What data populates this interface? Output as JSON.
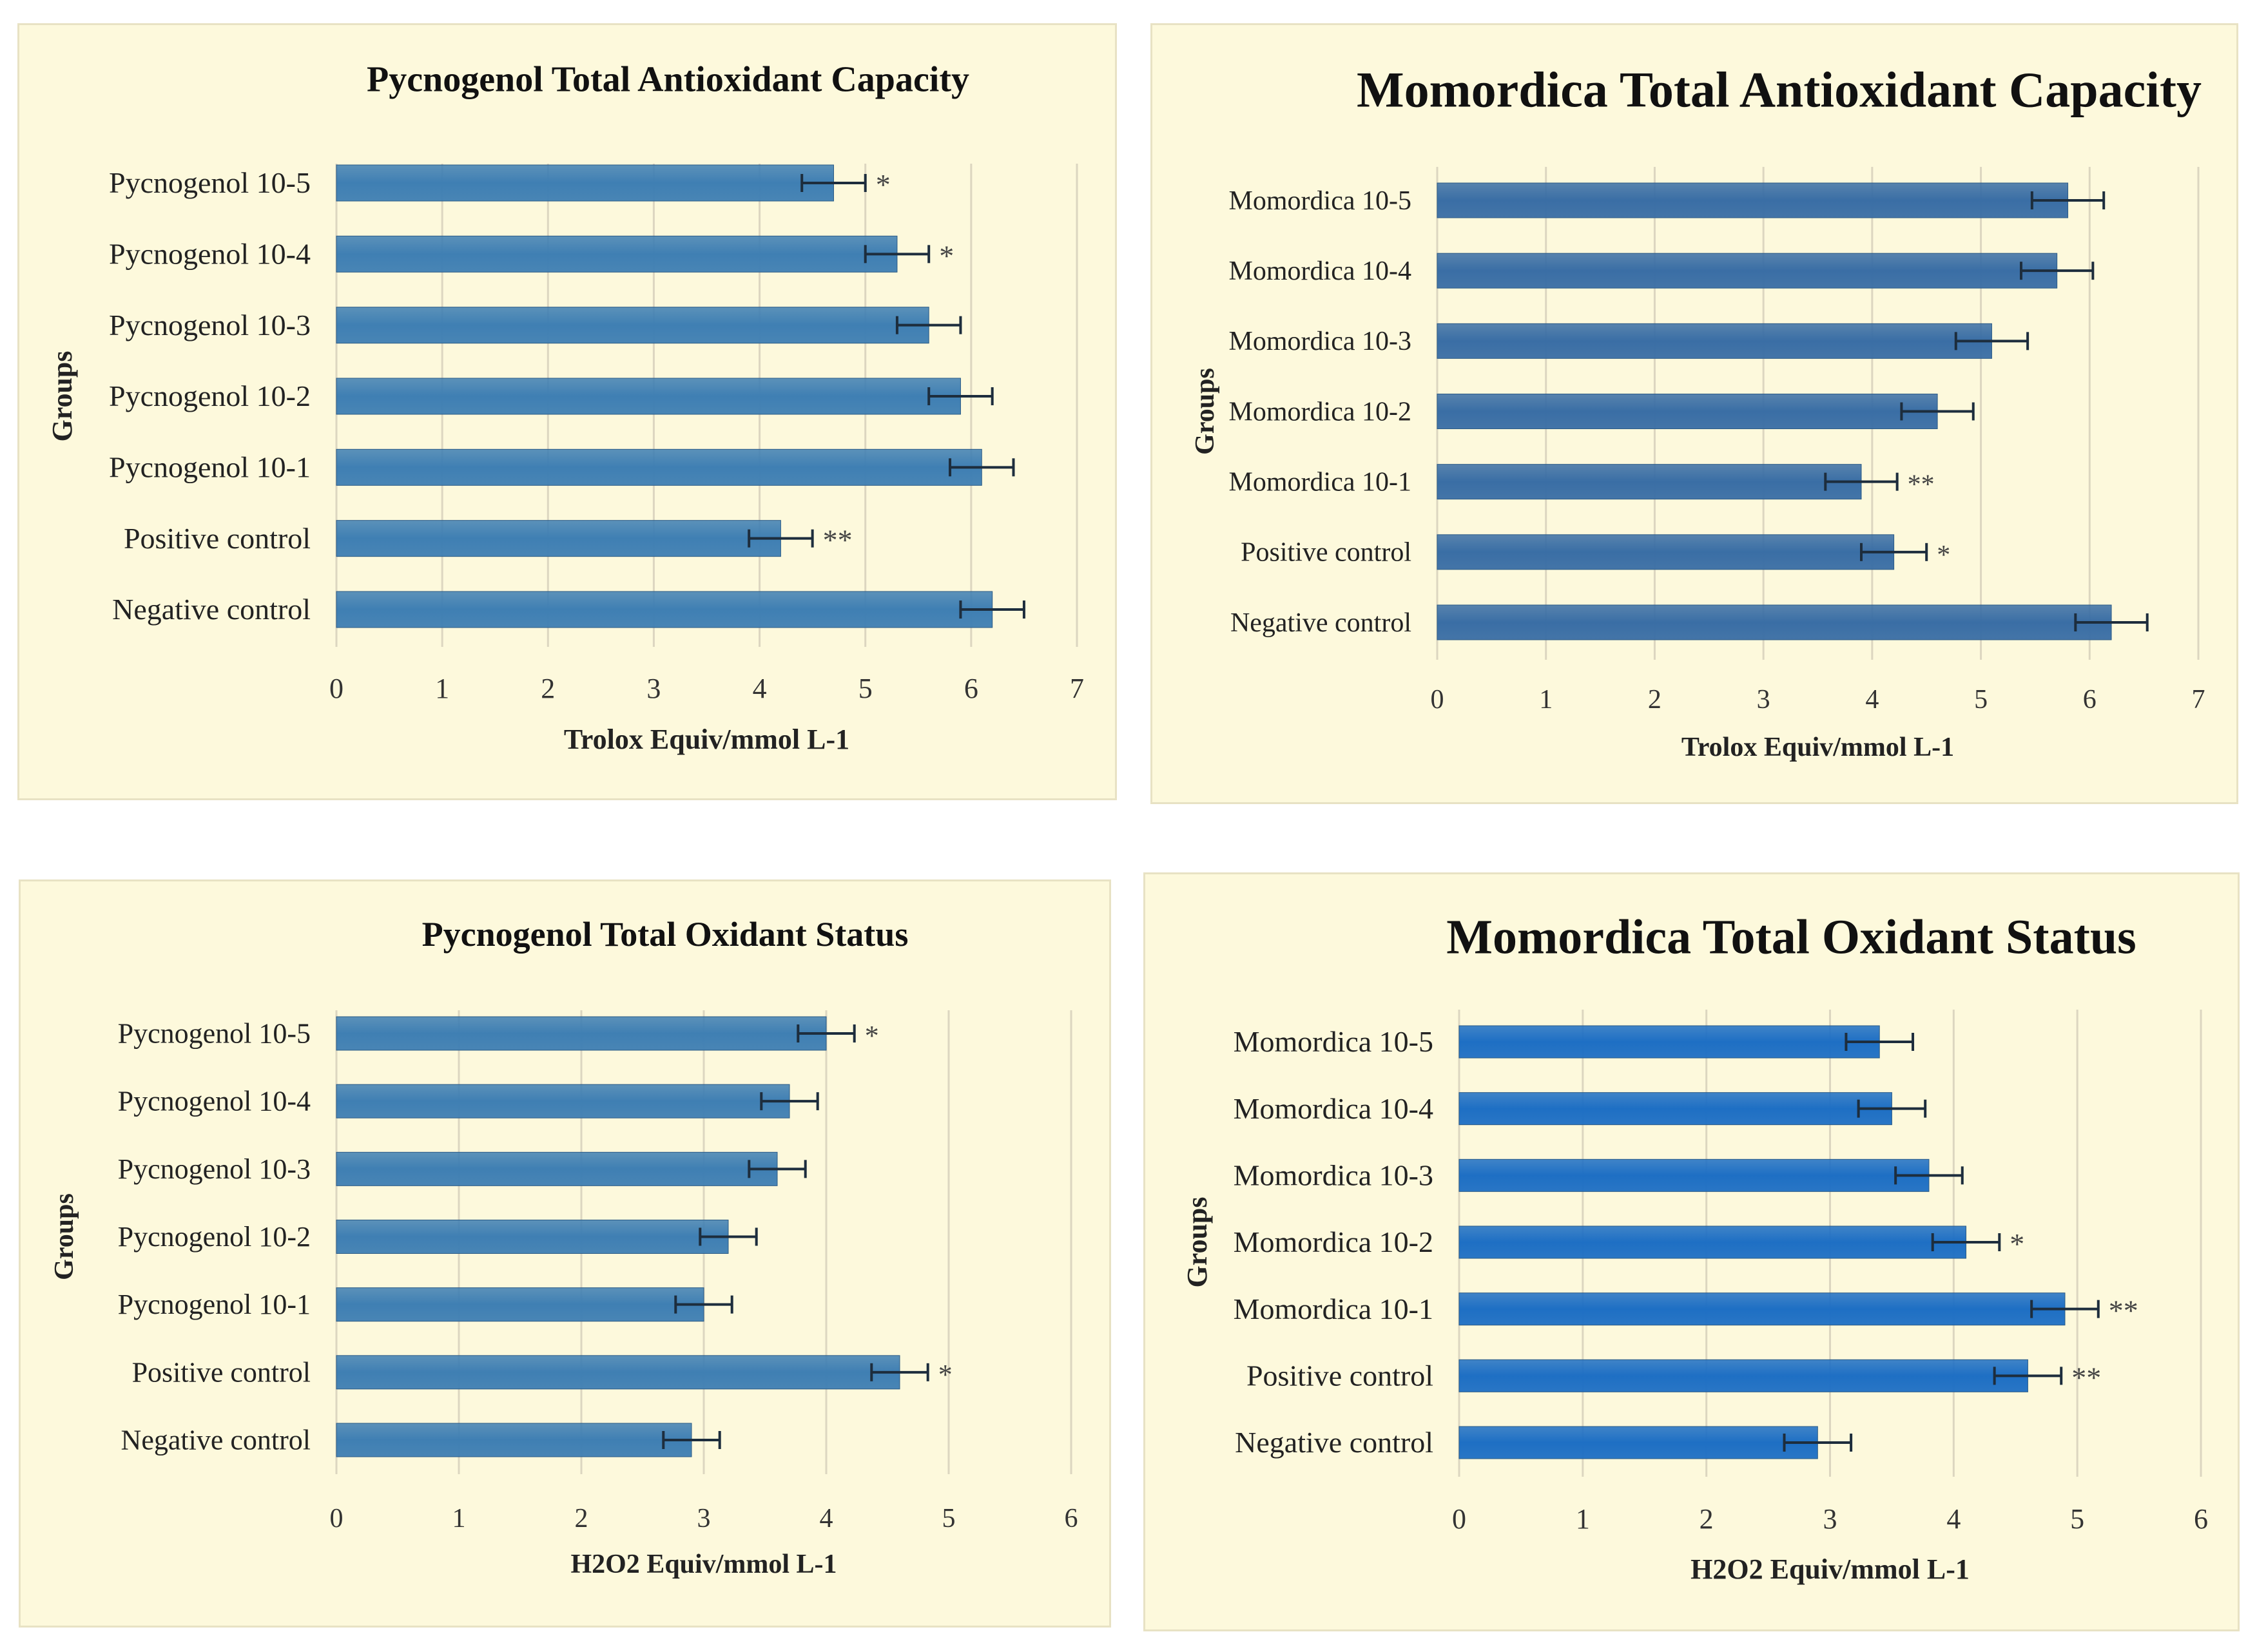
{
  "chart_data": [
    {
      "type": "bar",
      "orientation": "horizontal",
      "title": "Pycnogenol Total Antioxidant Capacity",
      "xlabel": "Trolox Equiv/mmol L-1",
      "ylabel": "Groups",
      "xlim": [
        0,
        7
      ],
      "xticks": [
        "0",
        "1",
        "2",
        "3",
        "4",
        "5",
        "6",
        "7"
      ],
      "grid": true,
      "categories": [
        "Pycnogenol 10-5",
        "Pycnogenol 10-4",
        "Pycnogenol 10-3",
        "Pycnogenol 10-2",
        "Pycnogenol 10-1",
        "Positive control",
        "Negative control"
      ],
      "values": [
        4.7,
        5.3,
        5.6,
        5.9,
        6.1,
        4.2,
        6.2
      ],
      "errors": [
        0.3,
        0.3,
        0.3,
        0.3,
        0.3,
        0.3,
        0.3
      ],
      "significance": [
        "*",
        "*",
        "",
        "",
        "",
        "**",
        ""
      ],
      "bar_color": "#3f7fb3"
    },
    {
      "type": "bar",
      "orientation": "horizontal",
      "title": "Momordica Total Antioxidant Capacity",
      "xlabel": "Trolox Equiv/mmol L-1",
      "ylabel": "Groups",
      "xlim": [
        0,
        7
      ],
      "xticks": [
        "0",
        "1",
        "2",
        "3",
        "4",
        "5",
        "6",
        "7"
      ],
      "grid": true,
      "categories": [
        "Momordica 10-5",
        "Momordica 10-4",
        "Momordica 10-3",
        "Momordica 10-2",
        "Momordica 10-1",
        "Positive control",
        "Negative control"
      ],
      "values": [
        5.8,
        5.7,
        5.1,
        4.6,
        3.9,
        4.2,
        6.2
      ],
      "errors": [
        0.33,
        0.33,
        0.33,
        0.33,
        0.33,
        0.3,
        0.33
      ],
      "significance": [
        "",
        "",
        "",
        "",
        "**",
        "*",
        ""
      ],
      "bar_color": "#3a6ea5"
    },
    {
      "type": "bar",
      "orientation": "horizontal",
      "title": "Pycnogenol Total Oxidant Status",
      "xlabel": "H2O2 Equiv/mmol L-1",
      "ylabel": "Groups",
      "xlim": [
        0,
        6
      ],
      "xticks": [
        "0",
        "1",
        "2",
        "3",
        "4",
        "5",
        "6"
      ],
      "grid": true,
      "categories": [
        "Pycnogenol 10-5",
        "Pycnogenol 10-4",
        "Pycnogenol 10-3",
        "Pycnogenol 10-2",
        "Pycnogenol 10-1",
        "Positive control",
        "Negative control"
      ],
      "values": [
        4.0,
        3.7,
        3.6,
        3.2,
        3.0,
        4.6,
        2.9
      ],
      "errors": [
        0.23,
        0.23,
        0.23,
        0.23,
        0.23,
        0.23,
        0.23
      ],
      "significance": [
        "*",
        "",
        "",
        "",
        "",
        "*",
        ""
      ],
      "bar_color": "#3f7fb3"
    },
    {
      "type": "bar",
      "orientation": "horizontal",
      "title": "Momordica Total Oxidant Status",
      "xlabel": "H2O2 Equiv/mmol L-1",
      "ylabel": "Groups",
      "xlim": [
        0,
        6
      ],
      "xticks": [
        "0",
        "1",
        "2",
        "3",
        "4",
        "5",
        "6"
      ],
      "grid": true,
      "categories": [
        "Momordica 10-5",
        "Momordica 10-4",
        "Momordica 10-3",
        "Momordica 10-2",
        "Momordica 10-1",
        "Positive control",
        "Negative control"
      ],
      "values": [
        3.4,
        3.5,
        3.8,
        4.1,
        4.9,
        4.6,
        2.9
      ],
      "errors": [
        0.27,
        0.27,
        0.27,
        0.27,
        0.27,
        0.27,
        0.27
      ],
      "significance": [
        "",
        "",
        "",
        "*",
        "**",
        "**",
        ""
      ],
      "bar_color": "#1e6fc4"
    }
  ]
}
